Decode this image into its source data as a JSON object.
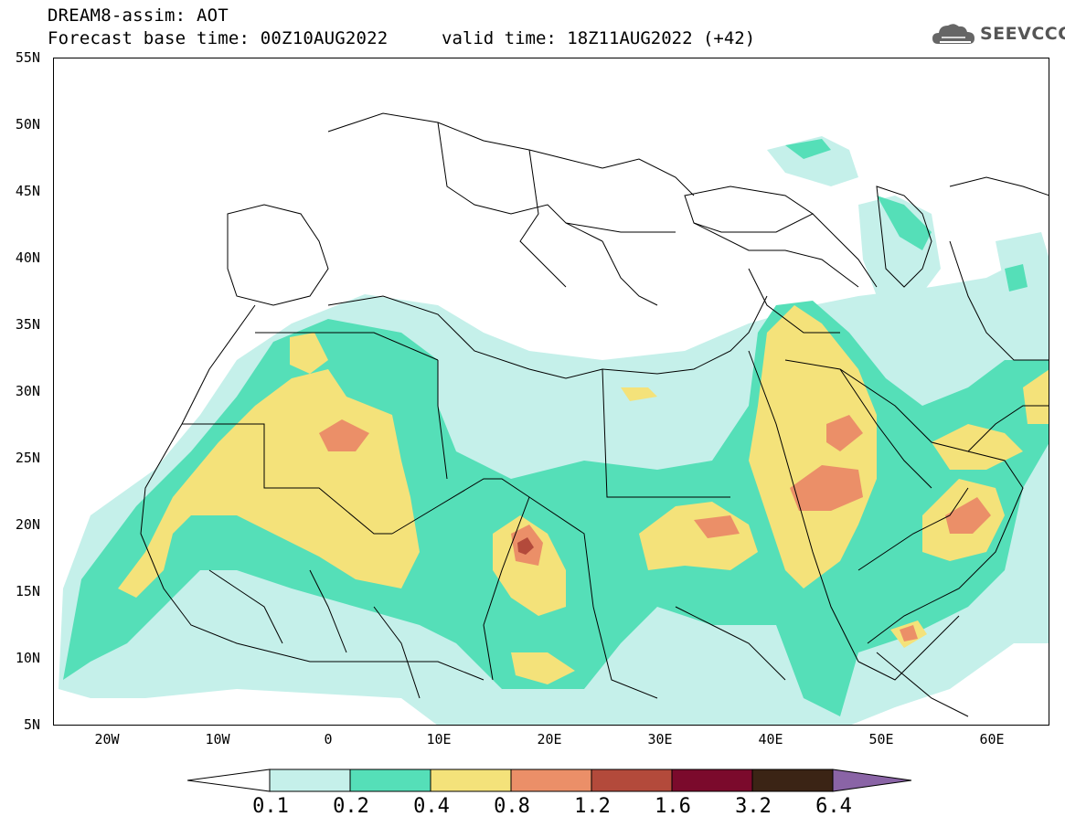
{
  "header": {
    "title_line1": "DREAM8-assim: AOT",
    "title_line2": "Forecast base time: 00Z10AUG2022",
    "valid_time": "valid time: 18Z11AUG2022 (+42)",
    "logo_text": "SEEVCCC",
    "logo_icon": "cloud-icon"
  },
  "map": {
    "lat_labels": [
      "55N",
      "50N",
      "45N",
      "40N",
      "35N",
      "30N",
      "25N",
      "20N",
      "15N",
      "10N",
      "5N"
    ],
    "lon_labels": [
      "20W",
      "10W",
      "0",
      "10E",
      "20E",
      "30E",
      "40E",
      "50E",
      "60E"
    ],
    "extent": {
      "lon_min": -25,
      "lon_max": 65,
      "lat_min": 5,
      "lat_max": 55
    }
  },
  "colorbar": {
    "levels": [
      "0.1",
      "0.2",
      "0.4",
      "0.8",
      "1.2",
      "1.6",
      "3.2",
      "6.4"
    ],
    "colors": [
      "#c5f0ea",
      "#55dfb8",
      "#f4e27a",
      "#eb8f68",
      "#b34a3b",
      "#7b0a2c",
      "#3b2415",
      "#8a64a6"
    ]
  },
  "colors": {
    "aot_0_1": "#c5f0ea",
    "aot_0_2": "#55dfb8",
    "aot_0_4": "#f4e27a",
    "aot_0_8": "#eb8f68",
    "aot_1_2": "#b34a3b"
  }
}
